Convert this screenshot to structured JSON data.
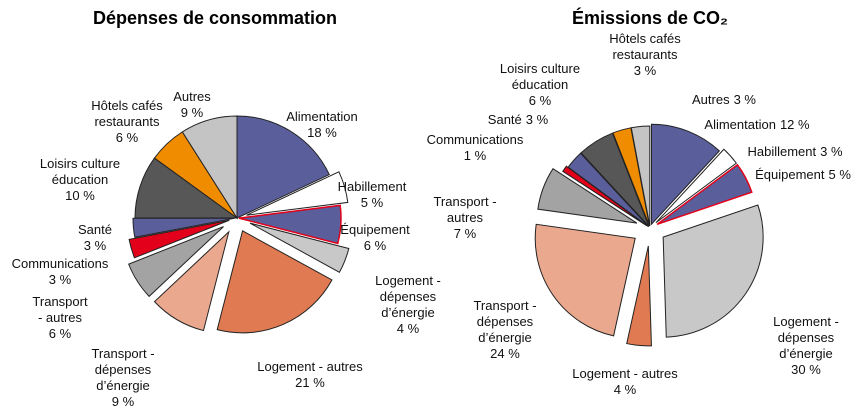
{
  "chart_data": [
    {
      "type": "pie",
      "title": "Dépenses de consommation",
      "categories": [
        "Alimentation",
        "Habillement",
        "Équipement",
        "Logement - dépenses d’énergie",
        "Logement - autres",
        "Transport - dépenses d’énergie",
        "Transport - autres",
        "Communications",
        "Santé",
        "Loisirs culture éducation",
        "Hôtels cafés restaurants",
        "Autres"
      ],
      "values": [
        18,
        5,
        6,
        4,
        21,
        9,
        6,
        3,
        3,
        10,
        6,
        9
      ],
      "value_labels": [
        "18 %",
        "5 %",
        "6 %",
        "4 %",
        "21 %",
        "9 %",
        "6 %",
        "3 %",
        "3 %",
        "10 %",
        "6 %",
        "9 %"
      ],
      "colors": [
        "#5a5f9b",
        "#ffffff",
        "#5a5f9b",
        "#c8c8c8",
        "#e07a52",
        "#eaa88e",
        "#a3a3a3",
        "#e2001a",
        "#5a5f9b",
        "#575757",
        "#f08c00",
        "#c4c4c4"
      ]
    },
    {
      "type": "pie",
      "title": "Émissions de CO₂",
      "categories": [
        "Alimentation",
        "Habillement",
        "Équipement",
        "Logement - dépenses d’énergie",
        "Logement - autres",
        "Transport - dépenses d’énergie",
        "Transport - autres",
        "Communications",
        "Santé",
        "Loisirs culture éducation",
        "Hôtels cafés restaurants",
        "Autres"
      ],
      "values": [
        12,
        3,
        5,
        30,
        4,
        24,
        7,
        1,
        3,
        6,
        3,
        3
      ],
      "value_labels": [
        "12 %",
        "3 %",
        "5 %",
        "30 %",
        "4 %",
        "24 %",
        "7 %",
        "1 %",
        "3 %",
        "6 %",
        "3 %",
        "3 %"
      ],
      "colors": [
        "#5a5f9b",
        "#ffffff",
        "#5a5f9b",
        "#c8c8c8",
        "#e07a52",
        "#eaa88e",
        "#a3a3a3",
        "#e2001a",
        "#5a5f9b",
        "#575757",
        "#f08c00",
        "#c4c4c4"
      ]
    }
  ]
}
